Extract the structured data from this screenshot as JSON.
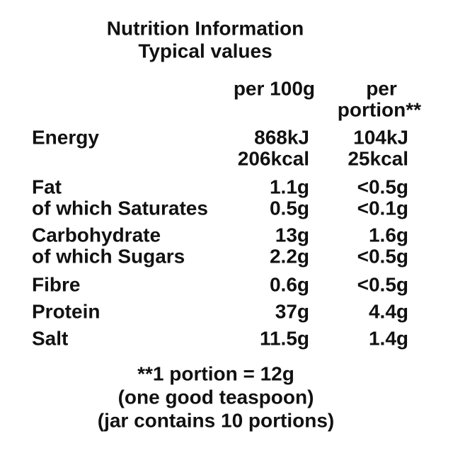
{
  "header": {
    "title": "Nutrition Information",
    "subtitle": "Typical values"
  },
  "table": {
    "columns": [
      [
        "per 100g"
      ],
      [
        "per",
        "portion**"
      ]
    ],
    "rows": [
      {
        "label": "Energy",
        "per_100g": [
          "868kJ",
          "206kcal"
        ],
        "per_portion": [
          "104kJ",
          "25kcal"
        ]
      },
      {
        "label": "Fat",
        "per_100g": [
          "1.1g"
        ],
        "per_portion": [
          "<0.5g"
        ]
      },
      {
        "label": "of which Saturates",
        "per_100g": [
          "0.5g"
        ],
        "per_portion": [
          "<0.1g"
        ]
      },
      {
        "label": "Carbohydrate",
        "per_100g": [
          "13g"
        ],
        "per_portion": [
          "1.6g"
        ]
      },
      {
        "label": "of which Sugars",
        "per_100g": [
          "2.2g"
        ],
        "per_portion": [
          "<0.5g"
        ]
      },
      {
        "label": "Fibre",
        "per_100g": [
          "0.6g"
        ],
        "per_portion": [
          "<0.5g"
        ]
      },
      {
        "label": "Protein",
        "per_100g": [
          "37g"
        ],
        "per_portion": [
          "4.4g"
        ]
      },
      {
        "label": "Salt",
        "per_100g": [
          "11.5g"
        ],
        "per_portion": [
          "1.4g"
        ]
      }
    ]
  },
  "footnote": [
    "**1 portion = 12g",
    "(one good teaspoon)",
    "(jar contains 10 portions)"
  ]
}
